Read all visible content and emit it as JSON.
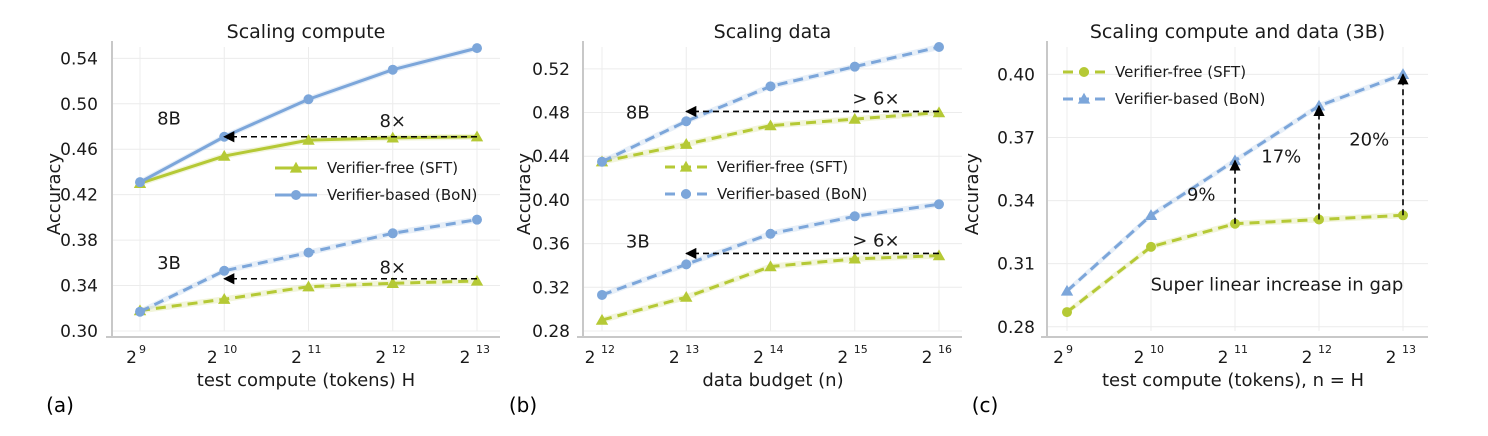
{
  "chart_data": [
    {
      "type": "line",
      "panel_label": "(a)",
      "title": "Scaling compute",
      "xlabel": "test compute (tokens) H",
      "ylabel": "Accuracy",
      "x_ticks": [
        {
          "base": "2",
          "exp": "9"
        },
        {
          "base": "2",
          "exp": "10"
        },
        {
          "base": "2",
          "exp": "11"
        },
        {
          "base": "2",
          "exp": "12"
        },
        {
          "base": "2",
          "exp": "13"
        }
      ],
      "x": [
        512,
        1024,
        2048,
        4096,
        8192
      ],
      "x_scale": "log2",
      "ylim": [
        0.3,
        0.55
      ],
      "y_ticks": [
        "0.30",
        "0.34",
        "0.38",
        "0.42",
        "0.46",
        "0.50",
        "0.54"
      ],
      "grid": true,
      "legend": {
        "placement": "center-right",
        "entries": [
          "Verifier-free (SFT)",
          "Verifier-based (BoN)"
        ]
      },
      "series": [
        {
          "name": "Verifier-free (SFT)",
          "group": "8B",
          "marker": "triangle",
          "dash": "solid",
          "color": "#b5c935",
          "values": [
            0.43,
            0.454,
            0.468,
            0.47,
            0.471
          ]
        },
        {
          "name": "Verifier-based (BoN)",
          "group": "8B",
          "marker": "circle",
          "dash": "solid",
          "color": "#7ca6da",
          "values": [
            0.431,
            0.471,
            0.504,
            0.53,
            0.549
          ]
        },
        {
          "name": "Verifier-free (SFT)",
          "group": "3B",
          "marker": "triangle",
          "dash": "dashed",
          "color": "#b5c935",
          "values": [
            0.318,
            0.328,
            0.339,
            0.342,
            0.344
          ]
        },
        {
          "name": "Verifier-based (BoN)",
          "group": "3B",
          "marker": "circle",
          "dash": "dashed",
          "color": "#7ca6da",
          "values": [
            0.317,
            0.353,
            0.369,
            0.386,
            0.398
          ]
        }
      ],
      "annotations": [
        {
          "text": "8B",
          "x": 650,
          "y": 0.487
        },
        {
          "text": "3B",
          "x": 650,
          "y": 0.36
        },
        {
          "text": "8×",
          "x": 4096,
          "y": 0.485
        },
        {
          "text": "8×",
          "x": 4096,
          "y": 0.356
        }
      ],
      "arrows": [
        {
          "from": [
            8192,
            0.471
          ],
          "to": [
            1024,
            0.471
          ]
        },
        {
          "from": [
            8192,
            0.346
          ],
          "to": [
            1024,
            0.346
          ]
        }
      ]
    },
    {
      "type": "line",
      "panel_label": "(b)",
      "title": "Scaling data",
      "xlabel": "data budget (n)",
      "ylabel": "Accuracy",
      "x_ticks": [
        {
          "base": "2",
          "exp": "12"
        },
        {
          "base": "2",
          "exp": "13"
        },
        {
          "base": "2",
          "exp": "14"
        },
        {
          "base": "2",
          "exp": "15"
        },
        {
          "base": "2",
          "exp": "16"
        }
      ],
      "x": [
        4096,
        8192,
        16384,
        32768,
        65536
      ],
      "x_scale": "log2",
      "ylim": [
        0.28,
        0.54
      ],
      "y_ticks": [
        "0.28",
        "0.32",
        "0.36",
        "0.40",
        "0.44",
        "0.48",
        "0.52"
      ],
      "grid": true,
      "legend": {
        "placement": "center-right",
        "entries": [
          "Verifier-free (SFT)",
          "Verifier-based (BoN)"
        ]
      },
      "series": [
        {
          "name": "Verifier-free (SFT)",
          "group": "8B",
          "marker": "triangle",
          "dash": "dashed",
          "color": "#b5c935",
          "values": [
            0.435,
            0.451,
            0.468,
            0.474,
            0.48
          ]
        },
        {
          "name": "Verifier-based (BoN)",
          "group": "8B",
          "marker": "circle",
          "dash": "dashed",
          "color": "#7ca6da",
          "values": [
            0.435,
            0.472,
            0.504,
            0.522,
            0.54
          ]
        },
        {
          "name": "Verifier-free (SFT)",
          "group": "3B",
          "marker": "triangle",
          "dash": "dashed",
          "color": "#b5c935",
          "values": [
            0.29,
            0.311,
            0.339,
            0.346,
            0.349
          ]
        },
        {
          "name": "Verifier-based (BoN)",
          "group": "3B",
          "marker": "circle",
          "dash": "dashed",
          "color": "#7ca6da",
          "values": [
            0.313,
            0.341,
            0.369,
            0.385,
            0.396
          ]
        }
      ],
      "annotations": [
        {
          "text": "8B",
          "x": 5500,
          "y": 0.48
        },
        {
          "text": "3B",
          "x": 5500,
          "y": 0.362
        },
        {
          "text": "> 6×",
          "x": 39000,
          "y": 0.493
        },
        {
          "text": "> 6×",
          "x": 39000,
          "y": 0.363
        }
      ],
      "arrows": [
        {
          "from": [
            65536,
            0.481
          ],
          "to": [
            8192,
            0.481
          ]
        },
        {
          "from": [
            65536,
            0.351
          ],
          "to": [
            8192,
            0.351
          ]
        }
      ]
    },
    {
      "type": "line",
      "panel_label": "(c)",
      "title": "Scaling compute and data (3B)",
      "xlabel": "test compute (tokens), n = H",
      "ylabel": "Accuracy",
      "x_ticks": [
        {
          "base": "2",
          "exp": "9"
        },
        {
          "base": "2",
          "exp": "10"
        },
        {
          "base": "2",
          "exp": "11"
        },
        {
          "base": "2",
          "exp": "12"
        },
        {
          "base": "2",
          "exp": "13"
        }
      ],
      "x": [
        512,
        1024,
        2048,
        4096,
        8192
      ],
      "x_scale": "log2",
      "ylim": [
        0.278,
        0.413
      ],
      "y_ticks": [
        "0.28",
        "0.31",
        "0.34",
        "0.37",
        "0.40"
      ],
      "grid": true,
      "legend": {
        "placement": "top-left",
        "entries": [
          "Verifier-free (SFT)",
          "Verifier-based (BoN)"
        ]
      },
      "series": [
        {
          "name": "Verifier-free (SFT)",
          "marker": "circle",
          "dash": "dashed",
          "color": "#b5c935",
          "values": [
            0.287,
            0.318,
            0.329,
            0.331,
            0.333
          ]
        },
        {
          "name": "Verifier-based (BoN)",
          "marker": "triangle",
          "dash": "dashed",
          "color": "#7ca6da",
          "values": [
            0.297,
            0.333,
            0.359,
            0.385,
            0.4
          ]
        }
      ],
      "annotations": [
        {
          "text": "9%",
          "x": 1550,
          "y": 0.343
        },
        {
          "text": "17%",
          "x": 3000,
          "y": 0.361
        },
        {
          "text": "20%",
          "x": 6200,
          "y": 0.369
        },
        {
          "text": "Super linear increase in gap",
          "x": 2896,
          "y": 0.3
        }
      ],
      "arrows": [
        {
          "from": [
            2048,
            0.329
          ],
          "to": [
            2048,
            0.359
          ]
        },
        {
          "from": [
            4096,
            0.331
          ],
          "to": [
            4096,
            0.385
          ]
        },
        {
          "from": [
            8192,
            0.333
          ],
          "to": [
            8192,
            0.4
          ]
        }
      ]
    }
  ]
}
